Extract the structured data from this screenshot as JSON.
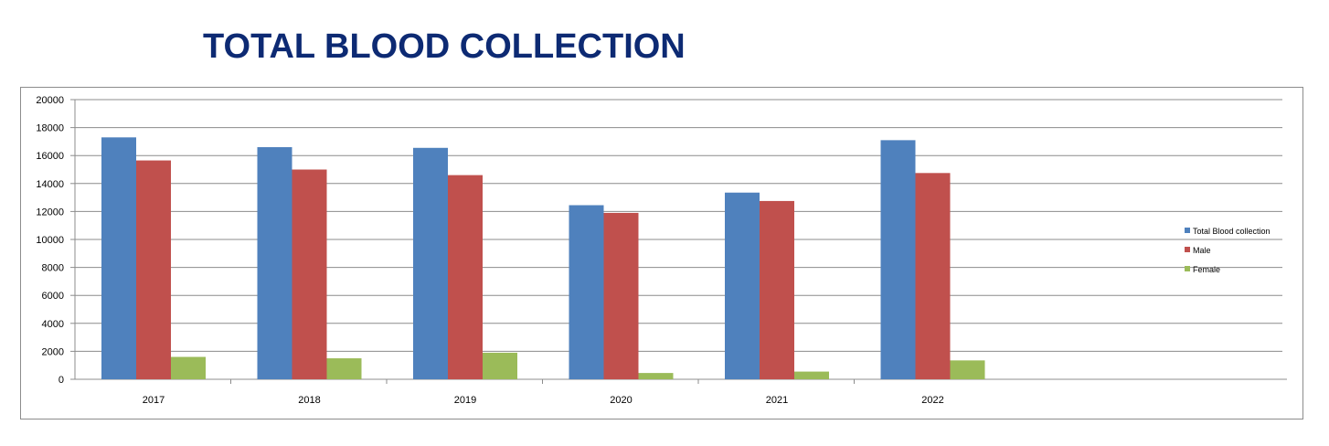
{
  "chart_data": {
    "type": "bar",
    "title": "TOTAL BLOOD COLLECTION",
    "categories": [
      "2017",
      "2018",
      "2019",
      "2020",
      "2021",
      "2022"
    ],
    "series": [
      {
        "name": "Total Blood collection",
        "color": "#4f81bd",
        "values": [
          17300,
          16600,
          16550,
          12450,
          13350,
          17100
        ]
      },
      {
        "name": "Male",
        "color": "#c0504d",
        "values": [
          15650,
          15000,
          14600,
          11900,
          12750,
          14750
        ]
      },
      {
        "name": "Female",
        "color": "#9bbb59",
        "values": [
          1600,
          1500,
          1900,
          450,
          550,
          1350
        ]
      }
    ],
    "yticks": [
      "0",
      "2000",
      "4000",
      "6000",
      "8000",
      "10000",
      "12000",
      "14000",
      "16000",
      "18000",
      "20000"
    ],
    "ylim": [
      0,
      20000
    ],
    "grid": true,
    "legend": "right"
  }
}
